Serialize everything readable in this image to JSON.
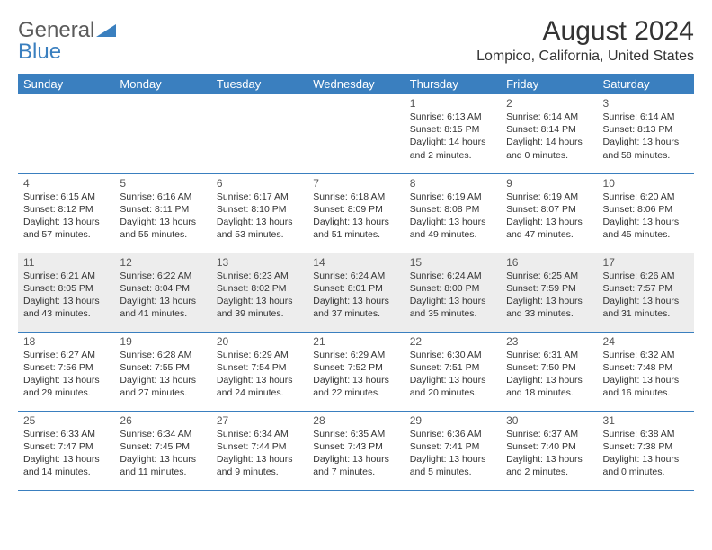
{
  "logo": {
    "word1": "General",
    "word2": "Blue"
  },
  "title": "August 2024",
  "location": "Lompico, California, United States",
  "colors": {
    "header_bg": "#3a7fbf",
    "header_text": "#ffffff",
    "border": "#3a7fbf",
    "shaded": "#ededed",
    "text": "#333333",
    "logo_gray": "#5b5b5b",
    "logo_blue": "#3a7fbf"
  },
  "weekdays": [
    "Sunday",
    "Monday",
    "Tuesday",
    "Wednesday",
    "Thursday",
    "Friday",
    "Saturday"
  ],
  "weeks": [
    [
      {
        "blank": true
      },
      {
        "blank": true
      },
      {
        "blank": true
      },
      {
        "blank": true
      },
      {
        "day": "1",
        "sunrise": "Sunrise: 6:13 AM",
        "sunset": "Sunset: 8:15 PM",
        "daylight": "Daylight: 14 hours and 2 minutes."
      },
      {
        "day": "2",
        "sunrise": "Sunrise: 6:14 AM",
        "sunset": "Sunset: 8:14 PM",
        "daylight": "Daylight: 14 hours and 0 minutes."
      },
      {
        "day": "3",
        "sunrise": "Sunrise: 6:14 AM",
        "sunset": "Sunset: 8:13 PM",
        "daylight": "Daylight: 13 hours and 58 minutes."
      }
    ],
    [
      {
        "day": "4",
        "sunrise": "Sunrise: 6:15 AM",
        "sunset": "Sunset: 8:12 PM",
        "daylight": "Daylight: 13 hours and 57 minutes."
      },
      {
        "day": "5",
        "sunrise": "Sunrise: 6:16 AM",
        "sunset": "Sunset: 8:11 PM",
        "daylight": "Daylight: 13 hours and 55 minutes."
      },
      {
        "day": "6",
        "sunrise": "Sunrise: 6:17 AM",
        "sunset": "Sunset: 8:10 PM",
        "daylight": "Daylight: 13 hours and 53 minutes."
      },
      {
        "day": "7",
        "sunrise": "Sunrise: 6:18 AM",
        "sunset": "Sunset: 8:09 PM",
        "daylight": "Daylight: 13 hours and 51 minutes."
      },
      {
        "day": "8",
        "sunrise": "Sunrise: 6:19 AM",
        "sunset": "Sunset: 8:08 PM",
        "daylight": "Daylight: 13 hours and 49 minutes."
      },
      {
        "day": "9",
        "sunrise": "Sunrise: 6:19 AM",
        "sunset": "Sunset: 8:07 PM",
        "daylight": "Daylight: 13 hours and 47 minutes."
      },
      {
        "day": "10",
        "sunrise": "Sunrise: 6:20 AM",
        "sunset": "Sunset: 8:06 PM",
        "daylight": "Daylight: 13 hours and 45 minutes."
      }
    ],
    [
      {
        "day": "11",
        "sunrise": "Sunrise: 6:21 AM",
        "sunset": "Sunset: 8:05 PM",
        "daylight": "Daylight: 13 hours and 43 minutes."
      },
      {
        "day": "12",
        "sunrise": "Sunrise: 6:22 AM",
        "sunset": "Sunset: 8:04 PM",
        "daylight": "Daylight: 13 hours and 41 minutes."
      },
      {
        "day": "13",
        "sunrise": "Sunrise: 6:23 AM",
        "sunset": "Sunset: 8:02 PM",
        "daylight": "Daylight: 13 hours and 39 minutes."
      },
      {
        "day": "14",
        "sunrise": "Sunrise: 6:24 AM",
        "sunset": "Sunset: 8:01 PM",
        "daylight": "Daylight: 13 hours and 37 minutes."
      },
      {
        "day": "15",
        "sunrise": "Sunrise: 6:24 AM",
        "sunset": "Sunset: 8:00 PM",
        "daylight": "Daylight: 13 hours and 35 minutes."
      },
      {
        "day": "16",
        "sunrise": "Sunrise: 6:25 AM",
        "sunset": "Sunset: 7:59 PM",
        "daylight": "Daylight: 13 hours and 33 minutes."
      },
      {
        "day": "17",
        "sunrise": "Sunrise: 6:26 AM",
        "sunset": "Sunset: 7:57 PM",
        "daylight": "Daylight: 13 hours and 31 minutes."
      }
    ],
    [
      {
        "day": "18",
        "sunrise": "Sunrise: 6:27 AM",
        "sunset": "Sunset: 7:56 PM",
        "daylight": "Daylight: 13 hours and 29 minutes."
      },
      {
        "day": "19",
        "sunrise": "Sunrise: 6:28 AM",
        "sunset": "Sunset: 7:55 PM",
        "daylight": "Daylight: 13 hours and 27 minutes."
      },
      {
        "day": "20",
        "sunrise": "Sunrise: 6:29 AM",
        "sunset": "Sunset: 7:54 PM",
        "daylight": "Daylight: 13 hours and 24 minutes."
      },
      {
        "day": "21",
        "sunrise": "Sunrise: 6:29 AM",
        "sunset": "Sunset: 7:52 PM",
        "daylight": "Daylight: 13 hours and 22 minutes."
      },
      {
        "day": "22",
        "sunrise": "Sunrise: 6:30 AM",
        "sunset": "Sunset: 7:51 PM",
        "daylight": "Daylight: 13 hours and 20 minutes."
      },
      {
        "day": "23",
        "sunrise": "Sunrise: 6:31 AM",
        "sunset": "Sunset: 7:50 PM",
        "daylight": "Daylight: 13 hours and 18 minutes."
      },
      {
        "day": "24",
        "sunrise": "Sunrise: 6:32 AM",
        "sunset": "Sunset: 7:48 PM",
        "daylight": "Daylight: 13 hours and 16 minutes."
      }
    ],
    [
      {
        "day": "25",
        "sunrise": "Sunrise: 6:33 AM",
        "sunset": "Sunset: 7:47 PM",
        "daylight": "Daylight: 13 hours and 14 minutes."
      },
      {
        "day": "26",
        "sunrise": "Sunrise: 6:34 AM",
        "sunset": "Sunset: 7:45 PM",
        "daylight": "Daylight: 13 hours and 11 minutes."
      },
      {
        "day": "27",
        "sunrise": "Sunrise: 6:34 AM",
        "sunset": "Sunset: 7:44 PM",
        "daylight": "Daylight: 13 hours and 9 minutes."
      },
      {
        "day": "28",
        "sunrise": "Sunrise: 6:35 AM",
        "sunset": "Sunset: 7:43 PM",
        "daylight": "Daylight: 13 hours and 7 minutes."
      },
      {
        "day": "29",
        "sunrise": "Sunrise: 6:36 AM",
        "sunset": "Sunset: 7:41 PM",
        "daylight": "Daylight: 13 hours and 5 minutes."
      },
      {
        "day": "30",
        "sunrise": "Sunrise: 6:37 AM",
        "sunset": "Sunset: 7:40 PM",
        "daylight": "Daylight: 13 hours and 2 minutes."
      },
      {
        "day": "31",
        "sunrise": "Sunrise: 6:38 AM",
        "sunset": "Sunset: 7:38 PM",
        "daylight": "Daylight: 13 hours and 0 minutes."
      }
    ]
  ],
  "shaded_rows": [
    2
  ]
}
